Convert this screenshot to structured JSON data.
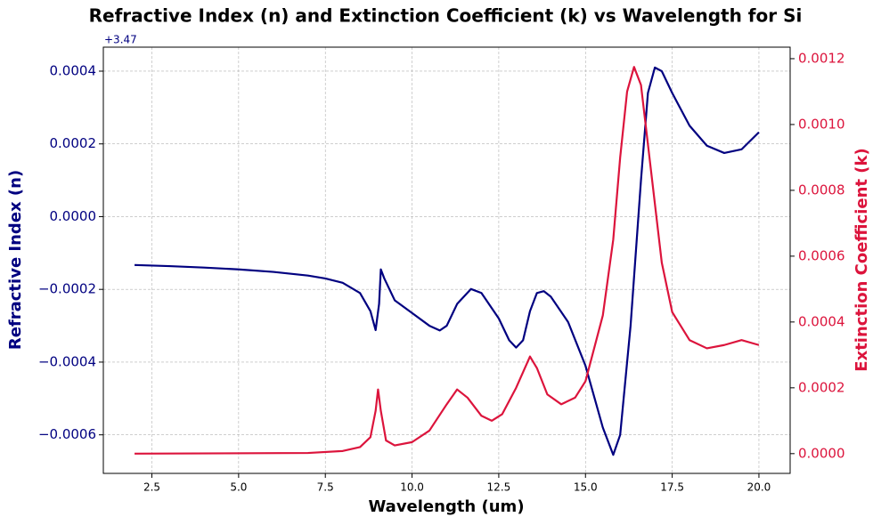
{
  "chart_data": {
    "type": "line",
    "title": "Refractive Index (n) and Extinction Coefficient (k) vs Wavelength for Si",
    "x_label": "Wavelength (um)",
    "y_label": "Refractive Index (n)",
    "y2_label": "Extinction Coefficient (k)",
    "y_offset_label": "+3.47",
    "y_color": "#000080",
    "y2_color": "#dc143c",
    "grid": true,
    "xlim": [
      1.1,
      20.9
    ],
    "xticks": [
      {
        "value": 2.5,
        "label": "2.5"
      },
      {
        "value": 5,
        "label": "5.0"
      },
      {
        "value": 7.5,
        "label": "7.5"
      },
      {
        "value": 10,
        "label": "10.0"
      },
      {
        "value": 12.5,
        "label": "12.5"
      },
      {
        "value": 15,
        "label": "15.0"
      },
      {
        "value": 17.5,
        "label": "17.5"
      },
      {
        "value": 20,
        "label": "20.0"
      }
    ],
    "ylim": [
      -0.000706,
      0.000466
    ],
    "yticks": [
      {
        "value": -0.0006,
        "label": "−0.0006"
      },
      {
        "value": -0.0004,
        "label": "−0.0004"
      },
      {
        "value": -0.0002,
        "label": "−0.0002"
      },
      {
        "value": 0,
        "label": "0.0000"
      },
      {
        "value": 0.0002,
        "label": "0.0002"
      },
      {
        "value": 0.0004,
        "label": "0.0004"
      }
    ],
    "y2lim": [
      -6e-05,
      0.001235
    ],
    "y2ticks": [
      {
        "value": 0,
        "label": "0.0000"
      },
      {
        "value": 0.0002,
        "label": "0.0002"
      },
      {
        "value": 0.0004,
        "label": "0.0004"
      },
      {
        "value": 0.0006,
        "label": "0.0006"
      },
      {
        "value": 0.0008,
        "label": "0.0008"
      },
      {
        "value": 0.001,
        "label": "0.0010"
      },
      {
        "value": 0.0012,
        "label": "0.0012"
      }
    ],
    "series": [
      {
        "color": "#000080",
        "axis": "y",
        "x": [
          2,
          3,
          4,
          5,
          6,
          7,
          7.5,
          8,
          8.5,
          8.8,
          8.95,
          9.05,
          9.1,
          9.2,
          9.5,
          10,
          10.5,
          10.8,
          11,
          11.3,
          11.7,
          12,
          12.5,
          12.8,
          13,
          13.2,
          13.4,
          13.6,
          13.8,
          14,
          14.5,
          15,
          15.5,
          15.8,
          16,
          16.3,
          16.6,
          16.8,
          17,
          17.2,
          17.5,
          18,
          18.5,
          19,
          19.5,
          20
        ],
        "values": [
          -0.000133,
          -0.000136,
          -0.00014,
          -0.000145,
          -0.000152,
          -0.000162,
          -0.00017,
          -0.000182,
          -0.00021,
          -0.00026,
          -0.000312,
          -0.00024,
          -0.000145,
          -0.00017,
          -0.00023,
          -0.000265,
          -0.0003,
          -0.000313,
          -0.0003,
          -0.00024,
          -0.000199,
          -0.00021,
          -0.00028,
          -0.00034,
          -0.00036,
          -0.00034,
          -0.00026,
          -0.00021,
          -0.000205,
          -0.00022,
          -0.00029,
          -0.00041,
          -0.00058,
          -0.000655,
          -0.0006,
          -0.0003,
          0.0001,
          0.00034,
          0.00041,
          0.0004,
          0.00034,
          0.00025,
          0.000195,
          0.000175,
          0.000185,
          0.000232
        ]
      },
      {
        "color": "#dc143c",
        "axis": "y2",
        "x": [
          2,
          7,
          8,
          8.5,
          8.8,
          8.95,
          9.02,
          9.1,
          9.25,
          9.5,
          10,
          10.5,
          11,
          11.3,
          11.6,
          12,
          12.3,
          12.6,
          13,
          13.4,
          13.6,
          13.9,
          14.3,
          14.7,
          15,
          15.5,
          15.8,
          16,
          16.2,
          16.4,
          16.6,
          16.9,
          17.2,
          17.5,
          18,
          18.5,
          19,
          19.5,
          20
        ],
        "values": [
          0,
          2e-06,
          8e-06,
          2e-05,
          5e-05,
          0.00013,
          0.000195,
          0.00013,
          4e-05,
          2.5e-05,
          3.5e-05,
          7e-05,
          0.00015,
          0.000195,
          0.00017,
          0.000115,
          0.0001,
          0.00012,
          0.0002,
          0.000295,
          0.00026,
          0.00018,
          0.00015,
          0.00017,
          0.00022,
          0.00042,
          0.00065,
          0.0009,
          0.0011,
          0.001175,
          0.00112,
          0.00085,
          0.00058,
          0.00043,
          0.000345,
          0.00032,
          0.00033,
          0.000345,
          0.00033
        ]
      }
    ]
  }
}
